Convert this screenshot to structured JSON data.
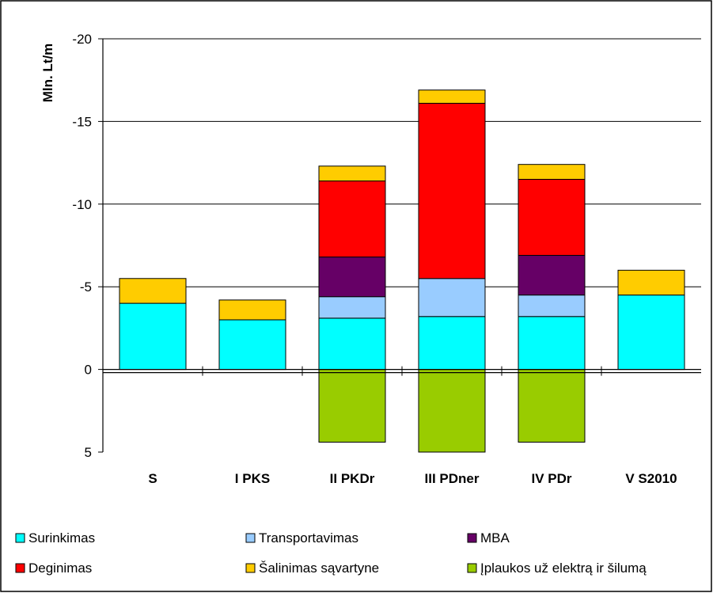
{
  "chart_data": {
    "type": "bar",
    "stacked": true,
    "ylabel": "Mln. Lt/m",
    "xlabel": "",
    "title": "",
    "ylim": [
      5,
      -20
    ],
    "y_axis_inverted": true,
    "y_ticks": [
      "-20",
      "-15",
      "-10",
      "-5",
      "0",
      "5"
    ],
    "y_tick_values": [
      -20,
      -15,
      -10,
      -5,
      0,
      5
    ],
    "grid": true,
    "legend_placement": "bottom",
    "categories": [
      "S",
      "I  PKS",
      "II  PKDr",
      "III  PDner",
      "IV PDr",
      "V S2010"
    ],
    "series": [
      {
        "name": "Surinkimas",
        "color": "#00ffff",
        "values": [
          -4.0,
          -3.0,
          -3.1,
          -3.2,
          -3.2,
          -4.5
        ]
      },
      {
        "name": "Transportavimas",
        "color": "#99ccff",
        "values": [
          0,
          0,
          -1.3,
          -2.3,
          -1.3,
          0
        ]
      },
      {
        "name": "MBA",
        "color": "#660066",
        "values": [
          0,
          0,
          -2.4,
          0,
          -2.4,
          0
        ]
      },
      {
        "name": "Deginimas",
        "color": "#ff0000",
        "values": [
          0,
          0,
          -4.6,
          -10.6,
          -4.6,
          0
        ]
      },
      {
        "name": "Šalinimas sąvartyne",
        "color": "#ffcc00",
        "values": [
          -1.5,
          -1.2,
          -0.9,
          -0.8,
          -0.9,
          -1.5
        ]
      },
      {
        "name": "Įplaukos už elektrą ir šilumą",
        "color": "#99cc00",
        "values": [
          0,
          0,
          4.4,
          5.5,
          4.4,
          0
        ]
      }
    ]
  }
}
